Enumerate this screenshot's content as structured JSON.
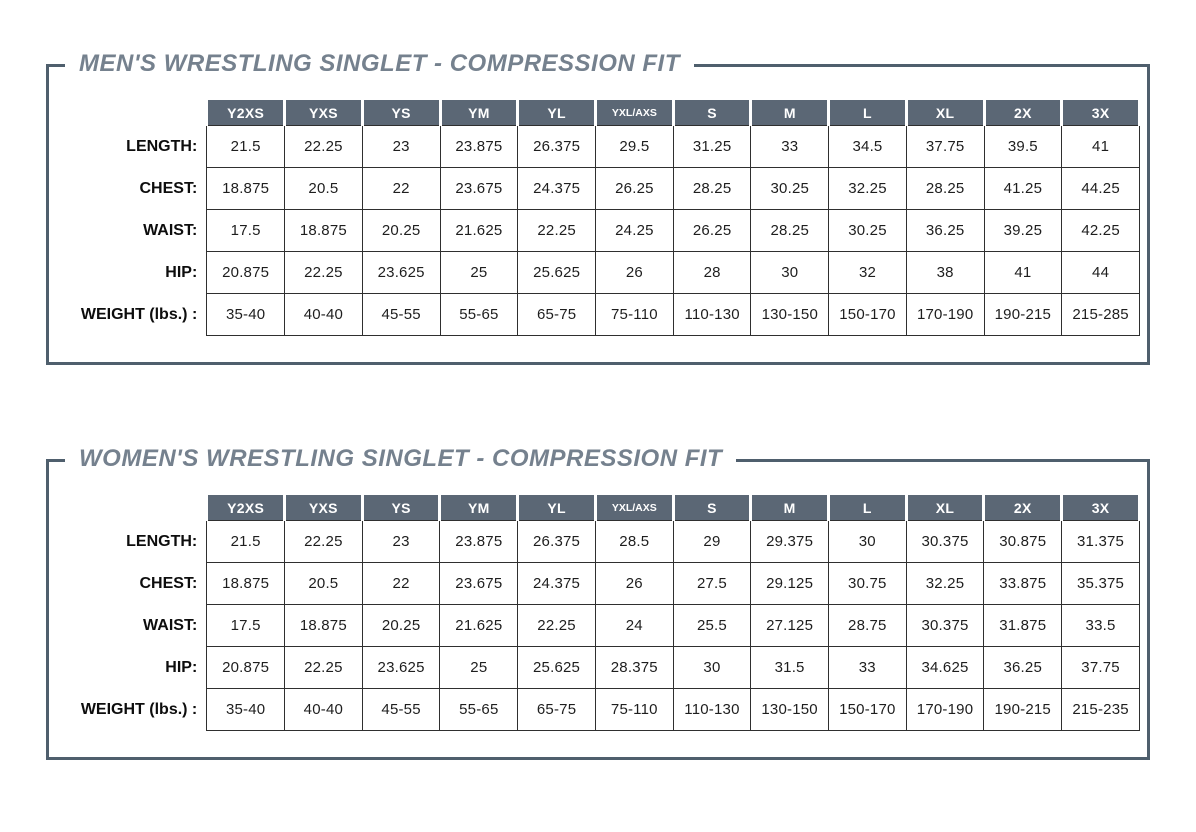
{
  "colors": {
    "frame_border": "#4f5f6d",
    "header_bg": "#5b6775",
    "title_color": "#75818e",
    "grid_line": "#2f2f2f"
  },
  "tables": [
    {
      "title": "MEN'S WRESTLING SINGLET - COMPRESSION FIT",
      "columns": [
        "Y2XS",
        "YXS",
        "YS",
        "YM",
        "YL",
        "YXL/AXS",
        "S",
        "M",
        "L",
        "XL",
        "2X",
        "3X"
      ],
      "rows": [
        {
          "label": "LENGTH:",
          "values": [
            "21.5",
            "22.25",
            "23",
            "23.875",
            "26.375",
            "29.5",
            "31.25",
            "33",
            "34.5",
            "37.75",
            "39.5",
            "41"
          ]
        },
        {
          "label": "CHEST:",
          "values": [
            "18.875",
            "20.5",
            "22",
            "23.675",
            "24.375",
            "26.25",
            "28.25",
            "30.25",
            "32.25",
            "28.25",
            "41.25",
            "44.25"
          ]
        },
        {
          "label": "WAIST:",
          "values": [
            "17.5",
            "18.875",
            "20.25",
            "21.625",
            "22.25",
            "24.25",
            "26.25",
            "28.25",
            "30.25",
            "36.25",
            "39.25",
            "42.25"
          ]
        },
        {
          "label": "HIP:",
          "values": [
            "20.875",
            "22.25",
            "23.625",
            "25",
            "25.625",
            "26",
            "28",
            "30",
            "32",
            "38",
            "41",
            "44"
          ]
        },
        {
          "label": "WEIGHT (lbs.) :",
          "values": [
            "35-40",
            "40-40",
            "45-55",
            "55-65",
            "65-75",
            "75-110",
            "110-130",
            "130-150",
            "150-170",
            "170-190",
            "190-215",
            "215-285"
          ]
        }
      ]
    },
    {
      "title": "WOMEN'S WRESTLING SINGLET - COMPRESSION FIT",
      "columns": [
        "Y2XS",
        "YXS",
        "YS",
        "YM",
        "YL",
        "YXL/AXS",
        "S",
        "M",
        "L",
        "XL",
        "2X",
        "3X"
      ],
      "rows": [
        {
          "label": "LENGTH:",
          "values": [
            "21.5",
            "22.25",
            "23",
            "23.875",
            "26.375",
            "28.5",
            "29",
            "29.375",
            "30",
            "30.375",
            "30.875",
            "31.375"
          ]
        },
        {
          "label": "CHEST:",
          "values": [
            "18.875",
            "20.5",
            "22",
            "23.675",
            "24.375",
            "26",
            "27.5",
            "29.125",
            "30.75",
            "32.25",
            "33.875",
            "35.375"
          ]
        },
        {
          "label": "WAIST:",
          "values": [
            "17.5",
            "18.875",
            "20.25",
            "21.625",
            "22.25",
            "24",
            "25.5",
            "27.125",
            "28.75",
            "30.375",
            "31.875",
            "33.5"
          ]
        },
        {
          "label": "HIP:",
          "values": [
            "20.875",
            "22.25",
            "23.625",
            "25",
            "25.625",
            "28.375",
            "30",
            "31.5",
            "33",
            "34.625",
            "36.25",
            "37.75"
          ]
        },
        {
          "label": "WEIGHT (lbs.) :",
          "values": [
            "35-40",
            "40-40",
            "45-55",
            "55-65",
            "65-75",
            "75-110",
            "110-130",
            "130-150",
            "150-170",
            "170-190",
            "190-215",
            "215-235"
          ]
        }
      ]
    }
  ]
}
